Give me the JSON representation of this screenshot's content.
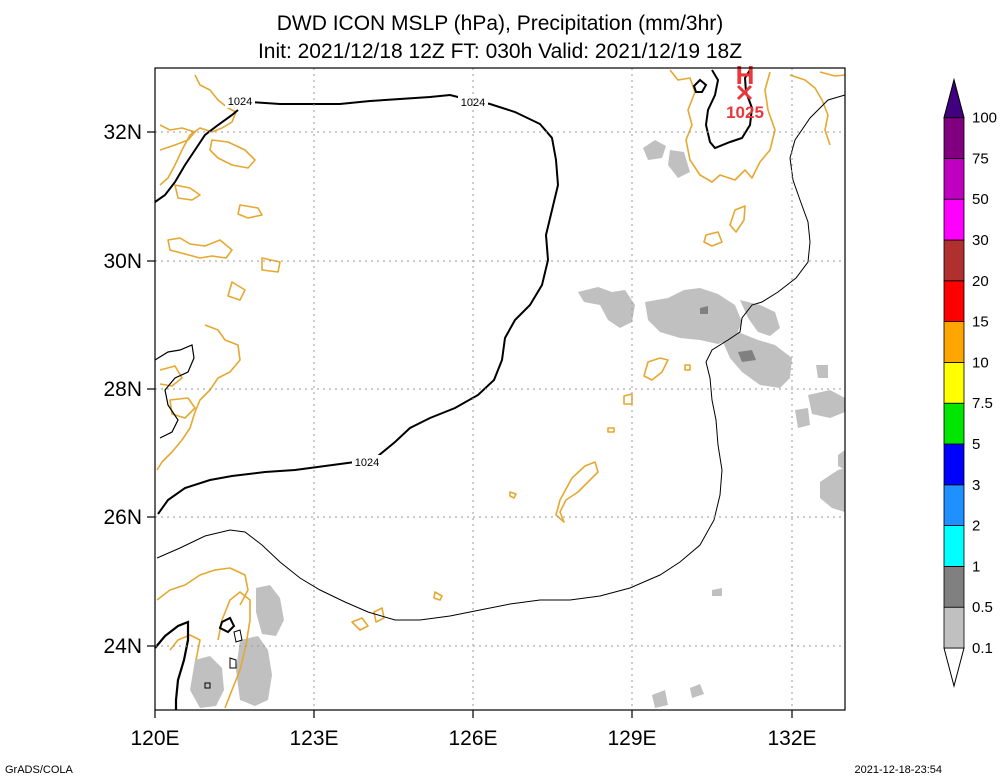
{
  "title": {
    "line1": "DWD ICON MSLP (hPa), Precipitation (mm/3hr)",
    "line2": "Init: 2021/12/18 12Z  FT: 030h  Valid: 2021/12/19 18Z"
  },
  "axes": {
    "x_ticks": [
      {
        "value": 120,
        "label": "120E"
      },
      {
        "value": 123,
        "label": "123E"
      },
      {
        "value": 126,
        "label": "126E"
      },
      {
        "value": 129,
        "label": "129E"
      },
      {
        "value": 132,
        "label": "132E"
      }
    ],
    "y_ticks": [
      {
        "value": 24,
        "label": "24N"
      },
      {
        "value": 26,
        "label": "26N"
      },
      {
        "value": 28,
        "label": "28N"
      },
      {
        "value": 30,
        "label": "30N"
      },
      {
        "value": 32,
        "label": "32N"
      }
    ],
    "lon_range": [
      120,
      133
    ],
    "lat_range": [
      23,
      33
    ]
  },
  "isobars": {
    "labels": [
      "1024",
      "1024",
      "1024"
    ]
  },
  "high_pressure": {
    "marker_letter": "H",
    "value": "1025",
    "color": "#e8383c"
  },
  "colorbar": {
    "levels": [
      "0.1",
      "0.5",
      "1",
      "2",
      "3",
      "5",
      "7.5",
      "10",
      "15",
      "20",
      "30",
      "50",
      "75",
      "100"
    ],
    "colors": [
      "#ffffff",
      "#c0c0c0",
      "#808080",
      "#00ffff",
      "#1e90ff",
      "#0000ff",
      "#00e600",
      "#ffff00",
      "#ffa500",
      "#ff0000",
      "#b03030",
      "#ff00ff",
      "#c000c0",
      "#800080",
      "#400080"
    ]
  },
  "colors": {
    "coastline": "#e6a830",
    "precip_light": "#c0c0c0",
    "precip_mid": "#808080"
  },
  "footer": {
    "left": "GrADS/COLA",
    "right": "2021-12-18-23:54"
  }
}
